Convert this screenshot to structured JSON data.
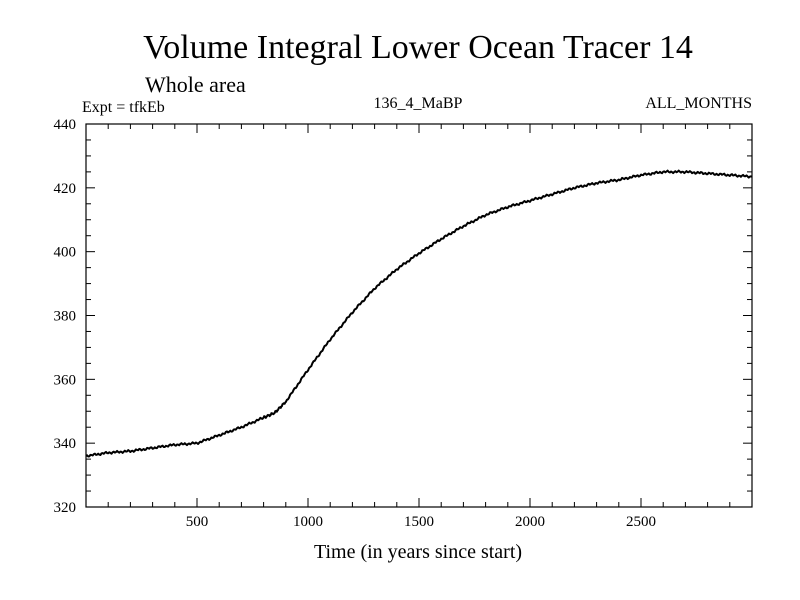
{
  "chart_data": {
    "type": "line",
    "title": "Volume Integral Lower Ocean Tracer 14",
    "subtitle": "Whole area",
    "header_left": "Expt = tfkEb",
    "header_center": "136_4_MaBP",
    "header_right": "ALL_MONTHS",
    "xlabel": "Time (in years since start)",
    "ylabel": "",
    "xlim": [
      0,
      3000
    ],
    "ylim": [
      320,
      440
    ],
    "x_ticks": [
      500,
      1000,
      1500,
      2000,
      2500
    ],
    "y_ticks": [
      320,
      340,
      360,
      380,
      400,
      420,
      440
    ],
    "grid": false,
    "series": [
      {
        "color": "#000000",
        "x": [
          0,
          100,
          200,
          300,
          400,
          500,
          600,
          700,
          800,
          850,
          900,
          1000,
          1100,
          1200,
          1300,
          1400,
          1500,
          1600,
          1700,
          1800,
          1900,
          2000,
          2100,
          2200,
          2300,
          2400,
          2500,
          2600,
          2700,
          2800,
          2900,
          3000
        ],
        "y": [
          336,
          337,
          337.5,
          338.5,
          339.5,
          340,
          342.5,
          345,
          348,
          349.5,
          353,
          363,
          372.5,
          381,
          388.5,
          394.5,
          399.5,
          404,
          408,
          411.5,
          414,
          416,
          418,
          420,
          421.5,
          422.5,
          424,
          425,
          425,
          424.5,
          424,
          423.5
        ]
      }
    ]
  }
}
